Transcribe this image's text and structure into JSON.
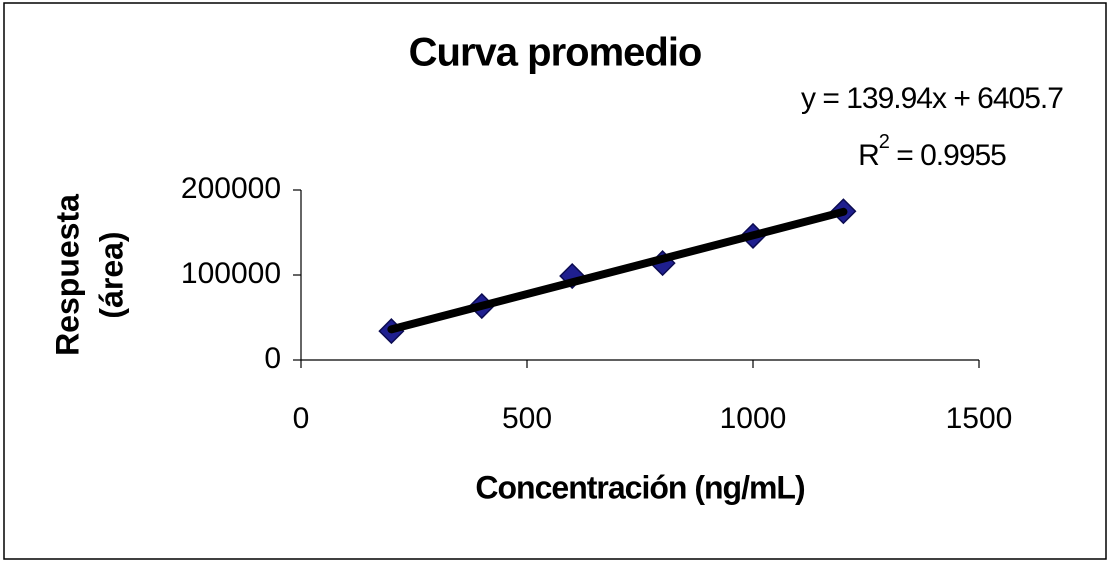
{
  "chart_data": {
    "type": "scatter",
    "title": "Curva promedio",
    "x_label": "Concentración (ng/mL)",
    "y_label": [
      "Respuesta",
      "(área)"
    ],
    "series": [
      {
        "name": "Curva promedio",
        "color": "#1f1f8f",
        "x": [
          200,
          400,
          600,
          800,
          1000,
          1200
        ],
        "values": [
          34000,
          63500,
          98800,
          114000,
          146000,
          175000
        ]
      }
    ],
    "trendline": {
      "type": "linear",
      "color": "#000000",
      "equation": "y = 139.94x + 6405.7",
      "r_squared": {
        "base": "R",
        "sup": "2",
        "rest": " = 0.9955"
      }
    },
    "xlim": [
      0,
      1500
    ],
    "xticks": [
      0,
      500,
      1000,
      1500
    ],
    "ylim": [
      0,
      200000
    ],
    "yticks": [
      0,
      100000,
      200000
    ],
    "grid": false
  }
}
